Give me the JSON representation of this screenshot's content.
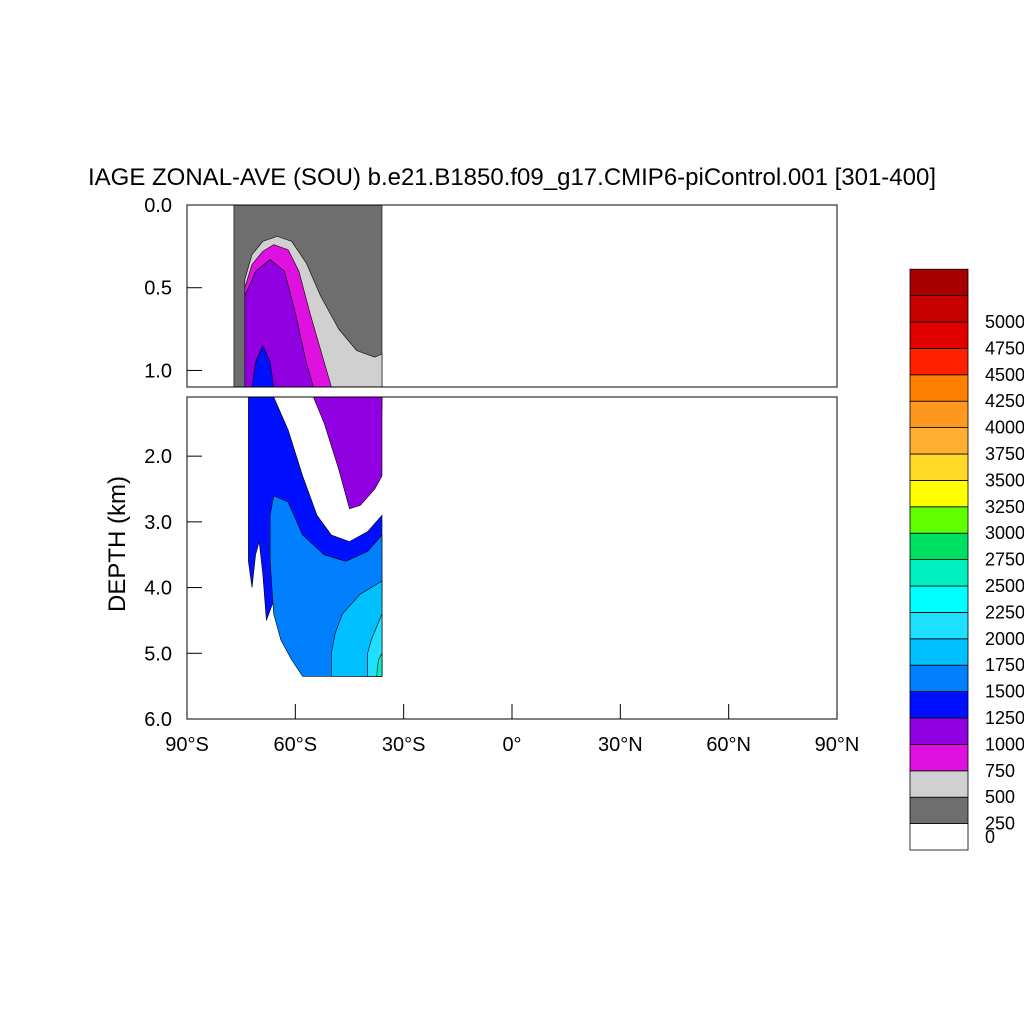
{
  "chart_data": {
    "type": "contour",
    "title": "IAGE ZONAL-AVE (SOU) b.e21.B1850.f09_g17.CMIP6-piControl.001 [301-400]",
    "ylabel": "DEPTH (km)",
    "xlabel": "",
    "xlim": [
      -90,
      90
    ],
    "xticks": [
      {
        "value": -90,
        "label": "90°S"
      },
      {
        "value": -60,
        "label": "60°S"
      },
      {
        "value": -30,
        "label": "30°S"
      },
      {
        "value": 0,
        "label": "0°"
      },
      {
        "value": 30,
        "label": "30°N"
      },
      {
        "value": 60,
        "label": "60°N"
      },
      {
        "value": 90,
        "label": "90°N"
      }
    ],
    "upper_panel": {
      "ylim": [
        0,
        1.1
      ],
      "yticks": [
        {
          "value": 0,
          "label": "0.0"
        },
        {
          "value": 0.5,
          "label": "0.5"
        },
        {
          "value": 1.0,
          "label": "1.0"
        }
      ]
    },
    "lower_panel": {
      "ylim": [
        1.1,
        6.0
      ],
      "yticks": [
        {
          "value": 2,
          "label": "2.0"
        },
        {
          "value": 3,
          "label": "3.0"
        },
        {
          "value": 4,
          "label": "4.0"
        },
        {
          "value": 5,
          "label": "5.0"
        },
        {
          "value": 6,
          "label": "6.0"
        }
      ]
    },
    "colorbar": {
      "labels": [
        "0",
        "250",
        "500",
        "750",
        "1000",
        "1250",
        "1500",
        "1750",
        "2000",
        "2250",
        "2500",
        "2750",
        "3000",
        "3250",
        "3500",
        "3750",
        "4000",
        "4250",
        "4500",
        "4750",
        "5000"
      ],
      "colors": [
        "#ffffff",
        "#6e6e6e",
        "#d0d0d0",
        "#e010e0",
        "#9000e0",
        "#0010ff",
        "#0080ff",
        "#00c0ff",
        "#20e0ff",
        "#00ffff",
        "#00f0c0",
        "#00e060",
        "#60ff00",
        "#ffff00",
        "#ffd828",
        "#ffb030",
        "#ff9820",
        "#ff8000",
        "#ff2000",
        "#e00000",
        "#c80000",
        "#a80000"
      ]
    },
    "fields": [
      {
        "level": 250,
        "color_index": 1,
        "upper": [
          [
            -77,
            0.0
          ],
          [
            -36,
            0.0
          ],
          [
            -36,
            1.1
          ],
          [
            -77,
            1.1
          ]
        ],
        "lower": []
      },
      {
        "level": 500,
        "color_index": 2,
        "upper": [
          [
            -74,
            1.1
          ],
          [
            -74,
            0.45
          ],
          [
            -72,
            0.3
          ],
          [
            -69,
            0.22
          ],
          [
            -65,
            0.19
          ],
          [
            -61,
            0.22
          ],
          [
            -57,
            0.35
          ],
          [
            -53,
            0.55
          ],
          [
            -48,
            0.75
          ],
          [
            -43,
            0.88
          ],
          [
            -38,
            0.92
          ],
          [
            -36,
            0.9
          ],
          [
            -36,
            1.1
          ]
        ],
        "lower": []
      },
      {
        "level": 750,
        "color_index": 3,
        "upper": [
          [
            -74,
            1.1
          ],
          [
            -74,
            0.5
          ],
          [
            -72,
            0.36
          ],
          [
            -69,
            0.28
          ],
          [
            -66,
            0.24
          ],
          [
            -62,
            0.27
          ],
          [
            -59,
            0.4
          ],
          [
            -56,
            0.65
          ],
          [
            -52,
            0.95
          ],
          [
            -50,
            1.1
          ]
        ],
        "lower": [
          [
            -74,
            1.1
          ],
          [
            -50,
            1.1
          ],
          [
            -48,
            1.22
          ],
          [
            -45,
            1.5
          ],
          [
            -42,
            1.95
          ],
          [
            -39,
            1.8
          ],
          [
            -37,
            1.45
          ],
          [
            -36,
            1.3
          ],
          [
            -36,
            1.1
          ]
        ]
      },
      {
        "level": 1000,
        "color_index": 4,
        "upper": [
          [
            -74,
            1.1
          ],
          [
            -74,
            0.55
          ],
          [
            -71,
            0.4
          ],
          [
            -67,
            0.33
          ],
          [
            -63,
            0.4
          ],
          [
            -60,
            0.65
          ],
          [
            -57,
            0.95
          ],
          [
            -55,
            1.1
          ]
        ],
        "lower": [
          [
            -74,
            1.1
          ],
          [
            -55,
            1.1
          ],
          [
            -52,
            1.5
          ],
          [
            -48,
            2.2
          ],
          [
            -45,
            2.8
          ],
          [
            -42,
            2.75
          ],
          [
            -38,
            2.5
          ],
          [
            -36,
            2.3
          ],
          [
            -36,
            1.1
          ]
        ]
      },
      {
        "level": 1250,
        "color_index": 5,
        "upper": [
          [
            -72,
            1.1
          ],
          [
            -71,
            0.95
          ],
          [
            -69,
            0.85
          ],
          [
            -67,
            0.95
          ],
          [
            -66,
            1.1
          ]
        ],
        "lower": [
          [
            -73,
            1.1
          ],
          [
            -66,
            1.1
          ],
          [
            -62,
            1.6
          ],
          [
            -58,
            2.3
          ],
          [
            -54,
            2.9
          ],
          [
            -50,
            3.2
          ],
          [
            -45,
            3.3
          ],
          [
            -40,
            3.15
          ],
          [
            -36,
            2.9
          ],
          [
            -36,
            4.3
          ],
          [
            -40,
            4.3
          ],
          [
            -50,
            4.3
          ],
          [
            -60,
            4.3
          ],
          [
            -66,
            4.2
          ],
          [
            -68,
            4.5
          ],
          [
            -69,
            3.8
          ],
          [
            -70,
            3.3
          ],
          [
            -71,
            3.5
          ],
          [
            -72,
            4.0
          ],
          [
            -73,
            3.6
          ],
          [
            -73,
            2.5
          ],
          [
            -73,
            1.1
          ]
        ]
      },
      {
        "level": 1500,
        "color_index": 6,
        "lower": [
          [
            -66,
            2.6
          ],
          [
            -62,
            2.7
          ],
          [
            -58,
            3.2
          ],
          [
            -52,
            3.5
          ],
          [
            -46,
            3.6
          ],
          [
            -40,
            3.45
          ],
          [
            -36,
            3.2
          ],
          [
            -36,
            5.35
          ],
          [
            -58,
            5.35
          ],
          [
            -61,
            5.1
          ],
          [
            -64,
            4.8
          ],
          [
            -66,
            4.4
          ],
          [
            -67,
            3.6
          ],
          [
            -67,
            2.9
          ]
        ]
      },
      {
        "level": 1750,
        "color_index": 7,
        "lower": [
          [
            -47,
            4.4
          ],
          [
            -42,
            4.1
          ],
          [
            -36,
            3.9
          ],
          [
            -36,
            5.35
          ],
          [
            -50,
            5.35
          ],
          [
            -50,
            5.0
          ],
          [
            -49,
            4.7
          ]
        ]
      },
      {
        "level": 2000,
        "color_index": 8,
        "lower": [
          [
            -39,
            4.8
          ],
          [
            -36,
            4.4
          ],
          [
            -36,
            5.35
          ],
          [
            -40,
            5.35
          ],
          [
            -40,
            5.0
          ]
        ]
      },
      {
        "level": 2250,
        "color_index": 10,
        "lower": [
          [
            -37,
            5.1
          ],
          [
            -36,
            5.0
          ],
          [
            -36,
            5.35
          ],
          [
            -37.5,
            5.35
          ]
        ]
      }
    ]
  }
}
